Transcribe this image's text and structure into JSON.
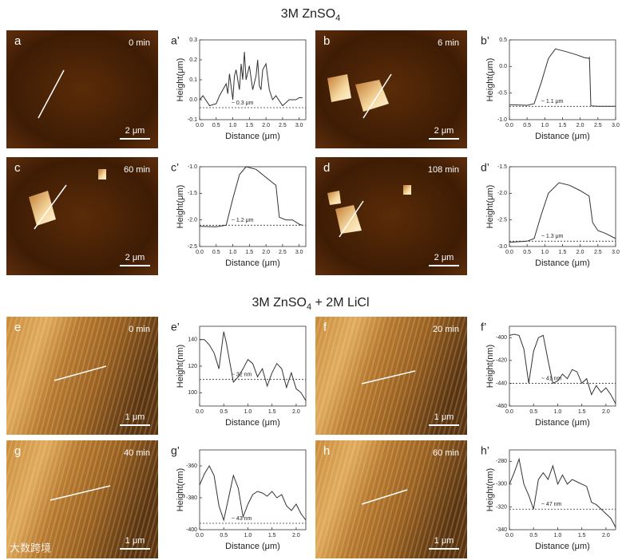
{
  "sections": [
    {
      "title": "3M ZnSO",
      "sub": "4",
      "rest": ""
    },
    {
      "title": "3M ZnSO",
      "sub": "4",
      "rest": " + 2M LiCl"
    }
  ],
  "images": [
    {
      "letter": "a",
      "time": "0 min",
      "scale": "2 μm"
    },
    {
      "letter": "b",
      "time": "6 min",
      "scale": "2 μm"
    },
    {
      "letter": "c",
      "time": "60 min",
      "scale": "2 μm"
    },
    {
      "letter": "d",
      "time": "108 min",
      "scale": "2 μm"
    },
    {
      "letter": "e",
      "time": "0 min",
      "scale": "1 μm"
    },
    {
      "letter": "f",
      "time": "20 min",
      "scale": "1 μm"
    },
    {
      "letter": "g",
      "time": "40 min",
      "scale": "1 μm"
    },
    {
      "letter": "h",
      "time": "60 min",
      "scale": "1 μm"
    }
  ],
  "watermark": "大数跨境",
  "chart_data": [
    {
      "type": "line",
      "label": "a’",
      "xlabel": "Distance (μm)",
      "ylabel": "Height(μm)",
      "annotation": "~ 0.3 μm",
      "baseline": -0.04,
      "color": "#333333",
      "xlim": [
        0,
        3.2
      ],
      "xticks": [
        {
          "value": 0,
          "label": "0.0"
        },
        0.5,
        {
          "value": 1,
          "label": "1.0"
        },
        1.5,
        {
          "value": 2,
          "label": "2.0"
        },
        2.5,
        {
          "value": 3,
          "label": "3.0"
        }
      ],
      "ylim": [
        -0.1,
        0.3
      ],
      "yticks": [
        -0.1,
        {
          "value": 0,
          "label": "0.0"
        },
        0.1,
        0.2,
        0.3
      ],
      "x": [
        0,
        0.1,
        0.3,
        0.5,
        0.6,
        0.7,
        0.8,
        0.85,
        0.9,
        1.0,
        1.05,
        1.1,
        1.2,
        1.25,
        1.3,
        1.35,
        1.4,
        1.5,
        1.6,
        1.7,
        1.75,
        1.8,
        1.85,
        1.9,
        2.0,
        2.1,
        2.2,
        2.3,
        2.5,
        2.7,
        2.9,
        3.0,
        3.1
      ],
      "values": [
        0.0,
        0.02,
        -0.03,
        -0.02,
        0.02,
        0.05,
        0.08,
        0.03,
        0.13,
        0.0,
        0.12,
        0.15,
        0.05,
        0.18,
        0.1,
        0.24,
        0.1,
        0.17,
        0.05,
        0.12,
        0.2,
        0.07,
        0.05,
        0.15,
        0.18,
        0.05,
        0.0,
        0.02,
        -0.03,
        0.0,
        0.0,
        0.01,
        0.01
      ]
    },
    {
      "type": "line",
      "label": "b’",
      "xlabel": "Distance (μm)",
      "ylabel": "Height(μm)",
      "annotation": "~ 1.1 μm",
      "baseline": -0.75,
      "color": "#333333",
      "xlim": [
        0,
        3.0
      ],
      "xticks": [
        {
          "value": 0,
          "label": "0.0"
        },
        0.5,
        {
          "value": 1,
          "label": "1.0"
        },
        1.5,
        {
          "value": 2,
          "label": "2.0"
        },
        2.5,
        {
          "value": 3,
          "label": "3.0"
        }
      ],
      "ylim": [
        -1.0,
        0.5
      ],
      "yticks": [
        {
          "value": -1,
          "label": "-1.0"
        },
        -0.5,
        {
          "value": 0,
          "label": "0.0"
        },
        0.5
      ],
      "x": [
        0,
        0.5,
        0.7,
        0.9,
        1.1,
        1.3,
        1.6,
        1.9,
        2.1,
        2.25,
        2.26,
        2.3,
        2.5,
        3.0
      ],
      "values": [
        -0.72,
        -0.73,
        -0.7,
        -0.3,
        0.15,
        0.33,
        0.28,
        0.22,
        0.17,
        0.15,
        0.18,
        -0.74,
        -0.75,
        -0.75
      ]
    },
    {
      "type": "line",
      "label": "c’",
      "xlabel": "Distance (μm)",
      "ylabel": "Height(μm)",
      "annotation": "~ 1.2 μm",
      "baseline": -2.1,
      "color": "#333333",
      "xlim": [
        0,
        3.2
      ],
      "xticks": [
        {
          "value": 0,
          "label": "0.0"
        },
        0.5,
        {
          "value": 1,
          "label": "1.0"
        },
        1.5,
        {
          "value": 2,
          "label": "2.0"
        },
        2.5,
        {
          "value": 3,
          "label": "3.0"
        }
      ],
      "ylim": [
        -2.5,
        -1.0
      ],
      "yticks": [
        -2.5,
        {
          "value": -2,
          "label": "-2.0"
        },
        -1.5,
        {
          "value": -1,
          "label": "-1.0"
        }
      ],
      "x": [
        0,
        0.5,
        0.8,
        1.0,
        1.2,
        1.4,
        1.7,
        1.9,
        2.2,
        2.3,
        2.4,
        2.6,
        2.8,
        3.0,
        3.1
      ],
      "values": [
        -2.12,
        -2.13,
        -2.1,
        -1.6,
        -1.15,
        -1.0,
        -1.05,
        -1.15,
        -1.3,
        -1.35,
        -1.95,
        -2.0,
        -2.0,
        -2.08,
        -2.1
      ]
    },
    {
      "type": "line",
      "label": "d’",
      "xlabel": "Distance (μm)",
      "ylabel": "Height(μm)",
      "annotation": "~ 1.3 μm",
      "baseline": -2.9,
      "color": "#333333",
      "xlim": [
        0,
        3.0
      ],
      "xticks": [
        {
          "value": 0,
          "label": "0.0"
        },
        0.5,
        {
          "value": 1,
          "label": "1.0"
        },
        1.5,
        {
          "value": 2,
          "label": "2.0"
        },
        2.5,
        {
          "value": 3,
          "label": "3.0"
        }
      ],
      "ylim": [
        -3.0,
        -1.5
      ],
      "yticks": [
        {
          "value": -3,
          "label": "-3.0"
        },
        -2.5,
        {
          "value": -2,
          "label": "-2.0"
        },
        -1.5
      ],
      "x": [
        0,
        0.5,
        0.7,
        0.9,
        1.1,
        1.4,
        1.7,
        2.0,
        2.25,
        2.35,
        2.5,
        2.7,
        3.0
      ],
      "values": [
        -2.92,
        -2.9,
        -2.85,
        -2.4,
        -2.0,
        -1.8,
        -1.85,
        -1.95,
        -2.05,
        -2.55,
        -2.7,
        -2.75,
        -2.85
      ]
    },
    {
      "type": "line",
      "label": "e’",
      "xlabel": "Distance (μm)",
      "ylabel": "Height(nm)",
      "annotation": "~ 32 nm",
      "baseline": 110,
      "color": "#333333",
      "xlim": [
        0,
        2.2
      ],
      "xticks": [
        {
          "value": 0,
          "label": "0.0"
        },
        0.5,
        {
          "value": 1,
          "label": "1.0"
        },
        1.5,
        {
          "value": 2,
          "label": "2.0"
        }
      ],
      "ylim": [
        90,
        150
      ],
      "yticks": [
        100,
        120,
        140
      ],
      "x": [
        0,
        0.1,
        0.2,
        0.3,
        0.4,
        0.5,
        0.55,
        0.6,
        0.7,
        0.8,
        0.9,
        1.0,
        1.1,
        1.2,
        1.3,
        1.4,
        1.5,
        1.6,
        1.7,
        1.8,
        1.9,
        2.0,
        2.1,
        2.2
      ],
      "values": [
        140,
        140,
        136,
        130,
        118,
        146,
        138,
        128,
        108,
        112,
        118,
        125,
        122,
        112,
        118,
        105,
        115,
        122,
        118,
        104,
        115,
        103,
        100,
        94
      ]
    },
    {
      "type": "line",
      "label": "f’",
      "xlabel": "Distance (μm)",
      "ylabel": "Height(nm)",
      "annotation": "~ 41 nm",
      "baseline": -440,
      "color": "#333333",
      "xlim": [
        0,
        2.2
      ],
      "xticks": [
        {
          "value": 0,
          "label": "0.0"
        },
        0.5,
        {
          "value": 1,
          "label": "1.0"
        },
        1.5,
        {
          "value": 2,
          "label": "2.0"
        }
      ],
      "ylim": [
        -460,
        -390
      ],
      "yticks": [
        -460,
        -440,
        -420,
        -400
      ],
      "x": [
        0,
        0.1,
        0.2,
        0.3,
        0.4,
        0.5,
        0.6,
        0.7,
        0.8,
        0.9,
        1.0,
        1.1,
        1.2,
        1.3,
        1.4,
        1.5,
        1.6,
        1.7,
        1.8,
        1.9,
        2.0,
        2.1,
        2.2
      ],
      "values": [
        -398,
        -397,
        -398,
        -410,
        -440,
        -412,
        -400,
        -398,
        -420,
        -440,
        -438,
        -432,
        -436,
        -428,
        -430,
        -440,
        -436,
        -450,
        -442,
        -448,
        -444,
        -450,
        -458
      ]
    },
    {
      "type": "line",
      "label": "g’",
      "xlabel": "Distance (μm)",
      "ylabel": "Height(nm)",
      "annotation": "~ 43 nm",
      "baseline": -396,
      "color": "#333333",
      "xlim": [
        0,
        2.2
      ],
      "xticks": [
        {
          "value": 0,
          "label": "0.0"
        },
        0.5,
        {
          "value": 1,
          "label": "1.0"
        },
        1.5,
        {
          "value": 2,
          "label": "2.0"
        }
      ],
      "ylim": [
        -400,
        -350
      ],
      "yticks": [
        -400,
        -380,
        -360
      ],
      "x": [
        0,
        0.1,
        0.2,
        0.3,
        0.4,
        0.5,
        0.6,
        0.7,
        0.8,
        0.9,
        1.0,
        1.1,
        1.2,
        1.3,
        1.4,
        1.5,
        1.6,
        1.7,
        1.8,
        1.9,
        2.0,
        2.1,
        2.2
      ],
      "values": [
        -372,
        -365,
        -360,
        -366,
        -385,
        -394,
        -380,
        -366,
        -374,
        -392,
        -384,
        -378,
        -376,
        -377,
        -379,
        -376,
        -380,
        -378,
        -385,
        -388,
        -384,
        -390,
        -394
      ]
    },
    {
      "type": "line",
      "label": "h’",
      "xlabel": "Distance (μm)",
      "ylabel": "Height(nm)",
      "annotation": "~ 47 nm",
      "baseline": -322,
      "color": "#333333",
      "xlim": [
        0,
        2.2
      ],
      "xticks": [
        {
          "value": 0,
          "label": "0.0"
        },
        0.5,
        {
          "value": 1,
          "label": "1.0"
        },
        1.5,
        {
          "value": 2,
          "label": "2.0"
        }
      ],
      "ylim": [
        -340,
        -270
      ],
      "yticks": [
        -340,
        -320,
        -300,
        -280
      ],
      "x": [
        0,
        0.1,
        0.2,
        0.3,
        0.4,
        0.5,
        0.6,
        0.7,
        0.8,
        0.9,
        1.0,
        1.1,
        1.2,
        1.3,
        1.4,
        1.5,
        1.6,
        1.7,
        1.8,
        1.9,
        2.0,
        2.1,
        2.2
      ],
      "values": [
        -300,
        -290,
        -278,
        -300,
        -310,
        -322,
        -296,
        -290,
        -296,
        -284,
        -300,
        -292,
        -300,
        -296,
        -298,
        -300,
        -302,
        -316,
        -318,
        -322,
        -326,
        -330,
        -338
      ]
    }
  ]
}
